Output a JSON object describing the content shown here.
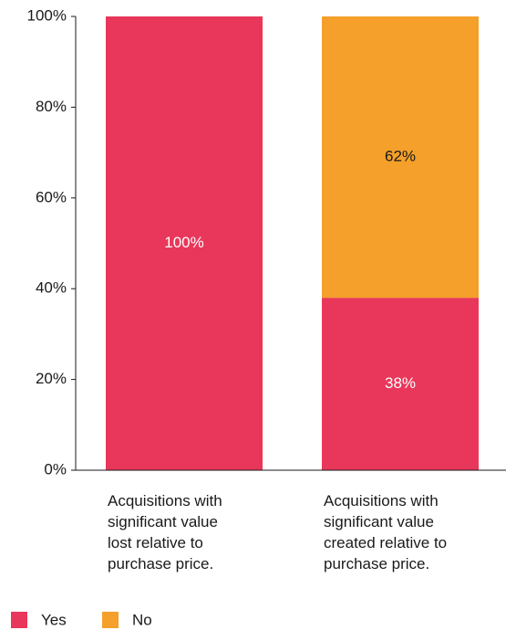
{
  "chart_data": {
    "type": "stacked_bar",
    "categories": [
      "Acquisitions with\nsignificant value\nlost relative to\npurchase price.",
      "Acquisitions with\nsignificant value\ncreated relative to\npurchase price."
    ],
    "series": [
      {
        "name": "Yes",
        "color": "#e8375a",
        "values": [
          100,
          38
        ],
        "value_labels": [
          "100%",
          "38%"
        ]
      },
      {
        "name": "No",
        "color": "#f4a02a",
        "values": [
          0,
          62
        ],
        "value_labels": [
          null,
          "62%"
        ]
      }
    ],
    "ylim": [
      0,
      100
    ],
    "yticks": [
      {
        "value": 0,
        "label": "0%"
      },
      {
        "value": 20,
        "label": "20%"
      },
      {
        "value": 40,
        "label": "40%"
      },
      {
        "value": 60,
        "label": "60%"
      },
      {
        "value": 80,
        "label": "80%"
      },
      {
        "value": 100,
        "label": "100%"
      }
    ],
    "legend": "bottom-left"
  }
}
